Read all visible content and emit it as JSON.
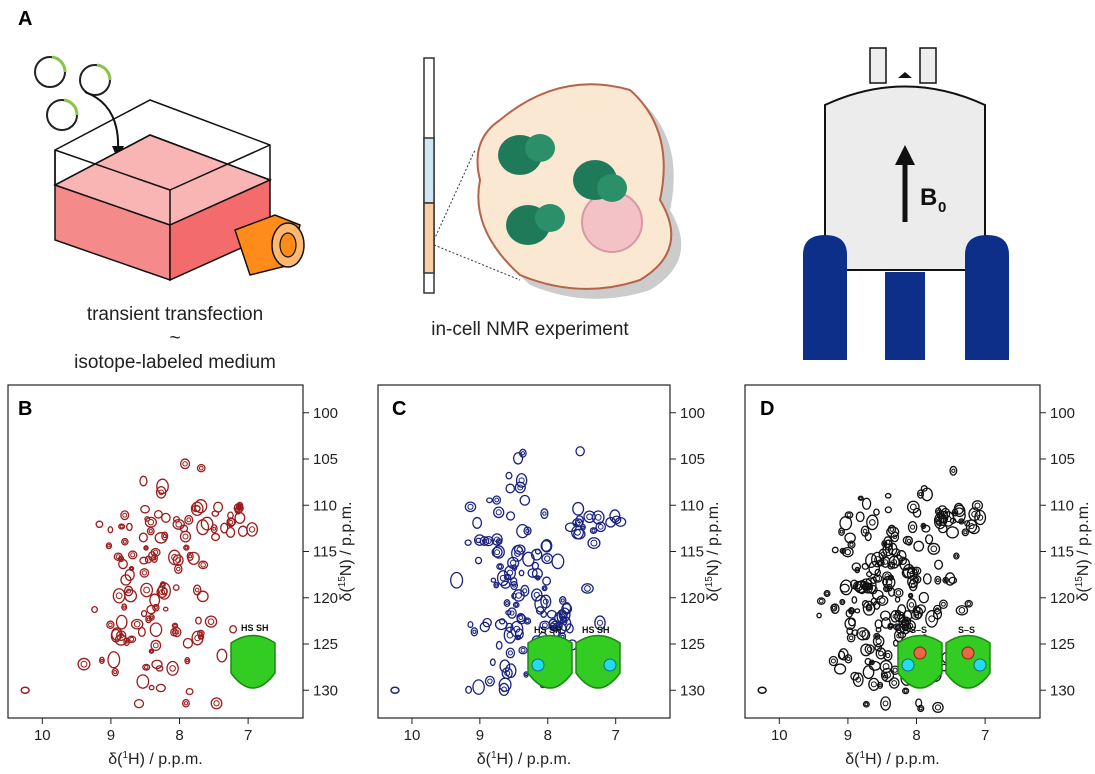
{
  "figure": {
    "panel_labels": {
      "a": "A",
      "b": "B",
      "c": "C",
      "d": "D"
    },
    "caption_left_line1": "transient transfection",
    "caption_left_line2": "~",
    "caption_left_line3": "isotope-labeled medium",
    "caption_middle": "in-cell NMR experiment",
    "magnet_label": "B",
    "magnet_label_sub": "0"
  },
  "spectra": {
    "x_ticks": [
      "10",
      "9",
      "8",
      "7"
    ],
    "y_ticks": [
      "100",
      "105",
      "110",
      "115",
      "120",
      "125",
      "130"
    ],
    "x_label_pre": "δ(",
    "x_label_sup": "1",
    "x_label_post": "H) / p.p.m.",
    "y_label_pre": "δ(",
    "y_label_sup": "15",
    "y_label_post": "N) / p.p.m.",
    "thiol_label": "HS",
    "thiol_label2": "SH",
    "disulfide_label": "S–S",
    "colors": {
      "B": "#9b1c1c",
      "C": "#1a237e",
      "D": "#111111",
      "protein": "#33cc22",
      "cyan": "#22ddee",
      "orange": "#ee6644"
    }
  }
}
